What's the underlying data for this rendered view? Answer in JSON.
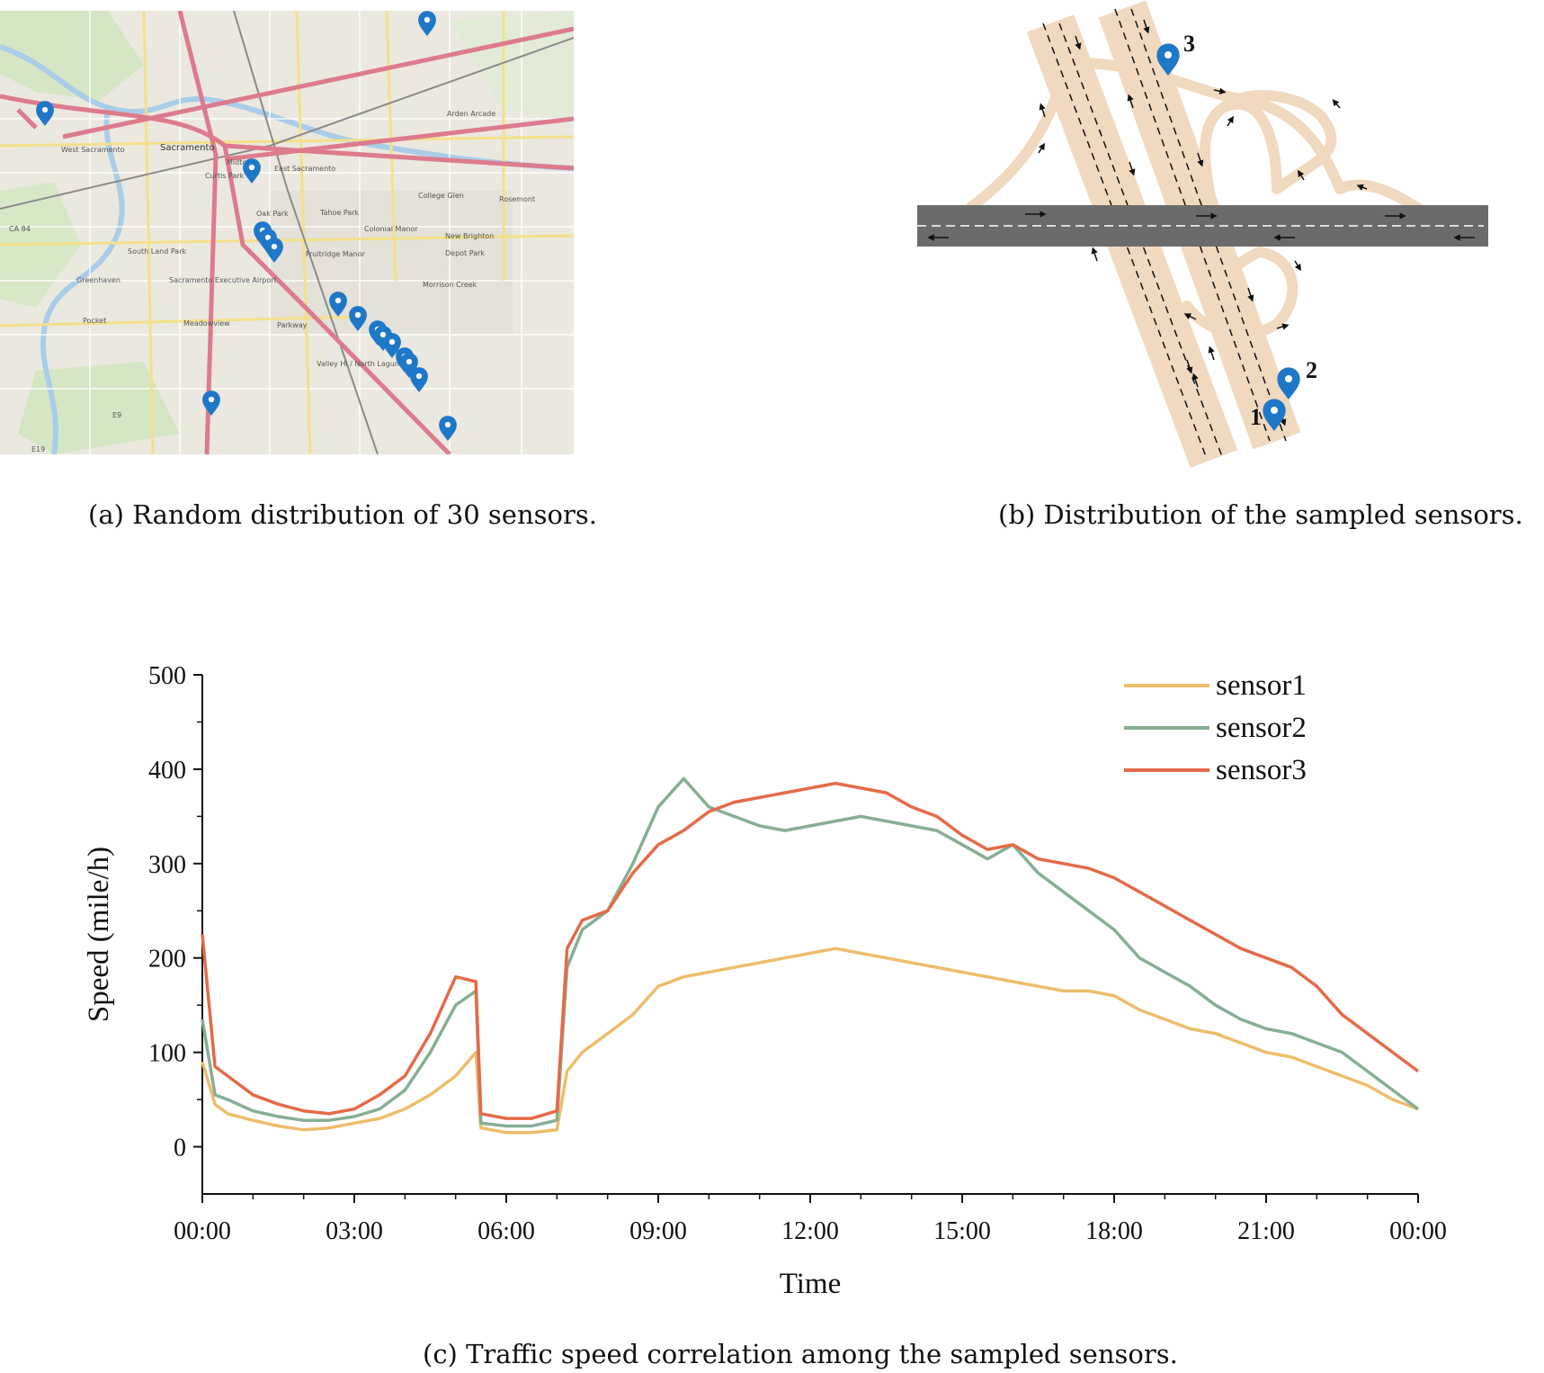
{
  "figure": {
    "caption_a": "(a) Random distribution of 30 sensors.",
    "caption_b": "(b) Distribution of the sampled sensors.",
    "caption_c": "(c) Traffic speed correlation among the sampled sensors."
  },
  "map": {
    "labels": [
      "West Sacramento",
      "Sacramento",
      "Midtown",
      "East Sacramento",
      "Arden Arcade",
      "Curtis Park",
      "Oak Park",
      "Tahoe Park",
      "College Glen",
      "Rosemont",
      "Colonial Manor",
      "New Brighton",
      "South Land Park",
      "Fruitridge Manor",
      "Depot Park",
      "Greenhaven",
      "Sacramento Executive Airport",
      "Morrison Creek",
      "Pocket",
      "Meadowview",
      "Parkway",
      "Valley Hi / North Laguna",
      "CA 84",
      "E9",
      "E19"
    ],
    "marker_icon": "map-pin-icon",
    "marker_color": "#1f77c8"
  },
  "diagram": {
    "sensor_labels": [
      "1",
      "2",
      "3"
    ],
    "road_color": "#f1d9bf",
    "highway_color": "#6b6b6b",
    "marker_color": "#1f77c8"
  },
  "chart_data": {
    "type": "line",
    "xlabel": "Time",
    "ylabel": "Speed (mile/h)",
    "xlim": [
      0,
      24
    ],
    "ylim": [
      -50,
      500
    ],
    "yticks": [
      0,
      100,
      200,
      300,
      400,
      500
    ],
    "xticks": [
      0,
      3,
      6,
      9,
      12,
      15,
      18,
      21,
      24
    ],
    "xtick_labels": [
      "00:00",
      "03:00",
      "06:00",
      "09:00",
      "12:00",
      "15:00",
      "18:00",
      "21:00",
      "00:00"
    ],
    "grid": false,
    "legend_position": "top-right",
    "x": [
      0,
      0.25,
      0.5,
      1,
      1.5,
      2,
      2.5,
      3,
      3.5,
      4,
      4.5,
      5,
      5.4,
      5.5,
      6,
      6.5,
      7,
      7.2,
      7.5,
      8,
      8.5,
      9,
      9.5,
      10,
      10.5,
      11,
      11.5,
      12,
      12.5,
      13,
      13.5,
      14,
      14.5,
      15,
      15.5,
      16,
      16.5,
      17,
      17.5,
      18,
      18.5,
      19,
      19.5,
      20,
      20.5,
      21,
      21.5,
      22,
      22.5,
      23,
      23.5,
      24
    ],
    "series": [
      {
        "name": "sensor1",
        "color": "#eebd6b",
        "values": [
          90,
          45,
          35,
          28,
          22,
          18,
          20,
          25,
          30,
          40,
          55,
          75,
          100,
          20,
          15,
          15,
          18,
          80,
          100,
          120,
          140,
          170,
          180,
          185,
          190,
          195,
          200,
          205,
          210,
          205,
          200,
          195,
          190,
          185,
          180,
          175,
          170,
          165,
          165,
          160,
          145,
          135,
          125,
          120,
          110,
          100,
          95,
          85,
          75,
          65,
          50,
          40
        ]
      },
      {
        "name": "sensor2",
        "color": "#86ae93",
        "values": [
          135,
          55,
          50,
          38,
          32,
          28,
          28,
          32,
          40,
          60,
          100,
          150,
          165,
          25,
          22,
          22,
          28,
          190,
          230,
          250,
          300,
          360,
          390,
          360,
          350,
          340,
          335,
          340,
          345,
          350,
          345,
          340,
          335,
          320,
          305,
          320,
          290,
          270,
          250,
          230,
          200,
          185,
          170,
          150,
          135,
          125,
          120,
          110,
          100,
          80,
          60,
          40
        ]
      },
      {
        "name": "sensor3",
        "color": "#e56a48",
        "values": [
          225,
          85,
          75,
          55,
          45,
          38,
          35,
          40,
          55,
          75,
          120,
          180,
          175,
          35,
          30,
          30,
          38,
          210,
          240,
          250,
          290,
          320,
          335,
          355,
          365,
          370,
          375,
          380,
          385,
          380,
          375,
          360,
          350,
          330,
          315,
          320,
          305,
          300,
          295,
          285,
          270,
          255,
          240,
          225,
          210,
          200,
          190,
          170,
          140,
          120,
          100,
          80
        ]
      }
    ]
  }
}
